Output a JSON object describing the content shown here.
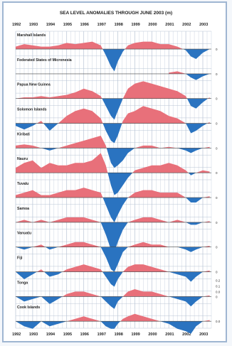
{
  "chart_data": {
    "type": "area",
    "title": "SEA LEVEL ANOMALIES THROUGH JUNE 2003 (m)",
    "xlabel": "",
    "ylabel": "",
    "x_ticks": [
      "1992",
      "1993",
      "1994",
      "1995",
      "1996",
      "1997",
      "1998",
      "1999",
      "2000",
      "2001",
      "2002",
      "2003"
    ],
    "xlim": [
      1992.0,
      2003.5
    ],
    "ylim": [
      -0.2,
      0.2
    ],
    "grid": true,
    "colors": {
      "positive": "#e8707a",
      "negative": "#2a73c0",
      "grid": "#b8c4d4",
      "frame": "#9fb6d2"
    },
    "scale_labels_tonga": [
      "0.2",
      "0.1",
      "0.0"
    ],
    "series": [
      {
        "name": "Marshall Islands",
        "axis_label": "0",
        "x": [
          1992.0,
          1992.5,
          1993.0,
          1993.5,
          1994.0,
          1994.5,
          1995.0,
          1995.5,
          1996.0,
          1996.5,
          1997.0,
          1997.3,
          1997.6,
          1997.8,
          1998.0,
          1998.3,
          1998.6,
          1999.0,
          1999.5,
          2000.0,
          2000.5,
          2001.0,
          2001.5,
          2002.0,
          2002.3,
          2002.6,
          2003.0,
          2003.4
        ],
        "values": [
          0.02,
          0.04,
          0.03,
          0.02,
          0.02,
          0.03,
          0.05,
          0.04,
          0.05,
          0.06,
          0.03,
          -0.05,
          -0.14,
          -0.18,
          -0.1,
          -0.02,
          0.03,
          0.05,
          0.06,
          0.06,
          0.04,
          0.04,
          0.02,
          -0.01,
          -0.06,
          -0.08,
          -0.03,
          0.0
        ]
      },
      {
        "name": "Federated States of Micronesia",
        "axis_label": "0",
        "x": [
          2001.0,
          2001.5,
          2002.0,
          2002.3,
          2002.6,
          2003.0,
          2003.4
        ],
        "values": [
          0.01,
          0.02,
          0.0,
          -0.03,
          -0.05,
          -0.02,
          0.0
        ]
      },
      {
        "name": "Papua New Guinea",
        "axis_label": "0",
        "x": [
          1992.0,
          1992.5,
          1993.0,
          1993.5,
          1994.0,
          1994.5,
          1995.0,
          1995.5,
          1996.0,
          1996.5,
          1997.0,
          1997.3,
          1997.6,
          1997.8,
          1998.0,
          1998.3,
          1998.6,
          1999.0,
          1999.5,
          2000.0,
          2000.5,
          2001.0,
          2001.5,
          2002.0,
          2002.3,
          2002.6,
          2003.0,
          2003.4
        ],
        "values": [
          0.0,
          0.01,
          0.01,
          0.02,
          0.01,
          0.02,
          0.03,
          0.05,
          0.08,
          0.06,
          0.02,
          -0.06,
          -0.14,
          -0.17,
          -0.1,
          0.0,
          0.08,
          0.12,
          0.14,
          0.12,
          0.1,
          0.08,
          0.06,
          0.02,
          -0.06,
          -0.08,
          -0.03,
          0.01
        ]
      },
      {
        "name": "Solomon Islands",
        "axis_label": "0",
        "x": [
          1992.0,
          1992.5,
          1993.0,
          1993.5,
          1994.0,
          1994.5,
          1995.0,
          1995.5,
          1996.0,
          1996.5,
          1997.0,
          1997.3,
          1997.6,
          1997.8,
          1998.0,
          1998.3,
          1998.6,
          1999.0,
          1999.5,
          2000.0,
          2000.5,
          2001.0,
          2001.5,
          2002.0,
          2002.3,
          2002.6,
          2003.0,
          2003.4
        ],
        "values": [
          -0.02,
          -0.05,
          -0.02,
          0.02,
          -0.06,
          0.0,
          0.06,
          0.1,
          0.12,
          0.1,
          0.04,
          -0.06,
          -0.14,
          -0.16,
          -0.1,
          0.02,
          0.08,
          0.1,
          0.14,
          0.12,
          0.1,
          0.06,
          0.04,
          0.0,
          -0.08,
          -0.06,
          -0.02,
          0.01
        ]
      },
      {
        "name": "Kiribati",
        "axis_label": "0",
        "x": [
          1992.0,
          1992.5,
          1993.0,
          1993.5,
          1994.0,
          1994.5,
          1995.0,
          1995.5,
          1996.0,
          1996.5,
          1997.0,
          1997.3,
          1997.6,
          1997.8,
          1998.0,
          1998.3,
          1998.6,
          1999.0,
          1999.5,
          2000.0,
          2000.5,
          2001.0,
          2001.5,
          2002.0,
          2002.3,
          2002.6,
          2003.0,
          2003.4
        ],
        "values": [
          0.02,
          0.03,
          0.02,
          0.0,
          -0.02,
          0.0,
          0.02,
          0.04,
          0.06,
          0.08,
          0.1,
          0.02,
          -0.12,
          -0.16,
          -0.14,
          -0.1,
          -0.04,
          0.0,
          0.02,
          0.02,
          0.0,
          0.01,
          0.0,
          -0.02,
          -0.04,
          -0.02,
          0.0,
          0.01
        ]
      },
      {
        "name": "Nauru",
        "axis_label": "0",
        "x": [
          1992.0,
          1992.5,
          1993.0,
          1993.5,
          1994.0,
          1994.5,
          1995.0,
          1995.5,
          1996.0,
          1996.5,
          1997.0,
          1997.3,
          1997.6,
          1997.8,
          1998.0,
          1998.3,
          1998.6,
          1999.0,
          1999.5,
          2000.0,
          2000.5,
          2001.0,
          2001.5,
          2002.0,
          2002.3,
          2002.6,
          2003.0,
          2003.4
        ],
        "values": [
          0.04,
          0.08,
          0.1,
          0.04,
          0.08,
          0.06,
          0.06,
          0.08,
          0.08,
          0.1,
          0.16,
          0.06,
          -0.1,
          -0.18,
          -0.16,
          -0.1,
          -0.04,
          0.02,
          0.04,
          0.06,
          0.06,
          0.08,
          0.06,
          0.02,
          -0.02,
          0.0,
          0.02,
          0.01
        ]
      },
      {
        "name": "Tuvalu",
        "axis_label": "0",
        "x": [
          1992.0,
          1992.5,
          1993.0,
          1993.5,
          1994.0,
          1994.5,
          1995.0,
          1995.5,
          1996.0,
          1996.5,
          1997.0,
          1997.3,
          1997.6,
          1997.8,
          1998.0,
          1998.3,
          1998.6,
          1999.0,
          1999.5,
          2000.0,
          2000.5,
          2001.0,
          2001.5,
          2002.0,
          2002.3,
          2002.6,
          2003.0,
          2003.4
        ],
        "values": [
          0.02,
          0.04,
          0.06,
          0.02,
          0.02,
          0.04,
          0.06,
          0.06,
          0.08,
          0.06,
          0.04,
          -0.06,
          -0.16,
          -0.2,
          -0.14,
          -0.06,
          0.0,
          0.04,
          0.06,
          0.06,
          0.04,
          0.04,
          0.04,
          0.0,
          -0.04,
          -0.04,
          0.0,
          0.01
        ]
      },
      {
        "name": "Samoa",
        "axis_label": "0",
        "x": [
          1992.0,
          1992.5,
          1993.0,
          1993.5,
          1994.0,
          1994.5,
          1995.0,
          1995.5,
          1996.0,
          1996.5,
          1997.0,
          1997.3,
          1997.6,
          1997.8,
          1998.0,
          1998.3,
          1998.6,
          1999.0,
          1999.5,
          2000.0,
          2000.5,
          2001.0,
          2001.5,
          2002.0,
          2002.3,
          2002.6,
          2003.0,
          2003.4
        ],
        "values": [
          0.0,
          0.02,
          0.0,
          0.02,
          0.0,
          0.02,
          0.04,
          0.04,
          0.04,
          0.02,
          0.0,
          -0.1,
          -0.22,
          -0.24,
          -0.16,
          -0.06,
          0.0,
          0.02,
          0.04,
          0.04,
          0.02,
          0.0,
          0.02,
          0.0,
          -0.02,
          -0.02,
          0.0,
          0.01
        ]
      },
      {
        "name": "Vanuatu",
        "axis_label": "0",
        "x": [
          1992.0,
          1992.5,
          1993.0,
          1993.5,
          1994.0,
          1994.5,
          1995.0,
          1995.5,
          1996.0,
          1996.5,
          1997.0,
          1997.3,
          1997.6,
          1997.8,
          1998.0,
          1998.3,
          1998.6,
          1999.0,
          1999.5,
          2000.0,
          2000.5,
          2001.0,
          2001.5,
          2002.0,
          2002.3,
          2002.6,
          2003.0,
          2003.4
        ],
        "values": [
          0.0,
          -0.02,
          0.0,
          0.02,
          -0.02,
          0.0,
          0.02,
          0.04,
          0.04,
          0.02,
          0.0,
          -0.08,
          -0.18,
          -0.2,
          -0.14,
          -0.04,
          0.0,
          0.02,
          0.04,
          0.02,
          0.02,
          0.0,
          0.0,
          -0.02,
          -0.04,
          -0.02,
          0.0,
          0.01
        ]
      },
      {
        "name": "Fiji",
        "axis_label": "0",
        "x": [
          1992.0,
          1992.5,
          1993.0,
          1993.5,
          1994.0,
          1994.5,
          1995.0,
          1995.5,
          1996.0,
          1996.5,
          1997.0,
          1997.3,
          1997.6,
          1997.8,
          1998.0,
          1998.3,
          1998.6,
          1999.0,
          1999.5,
          2000.0,
          2000.5,
          2001.0,
          2001.5,
          2002.0,
          2002.3,
          2002.6,
          2003.0,
          2003.4
        ],
        "values": [
          0.0,
          -0.06,
          -0.02,
          0.02,
          -0.04,
          -0.02,
          0.02,
          0.04,
          0.06,
          0.04,
          0.02,
          -0.04,
          -0.1,
          -0.12,
          -0.06,
          0.0,
          0.04,
          0.06,
          0.06,
          0.04,
          0.02,
          0.0,
          -0.02,
          -0.04,
          -0.08,
          -0.04,
          0.0,
          0.01
        ]
      },
      {
        "name": "Tonga",
        "axis_label": "0",
        "x": [
          1992.0,
          1992.5,
          1993.0,
          1993.5,
          1994.0,
          1994.5,
          1995.0,
          1995.5,
          1996.0,
          1996.5,
          1997.0,
          1997.3,
          1997.6,
          1997.8,
          1998.0,
          1998.3,
          1998.6,
          1999.0,
          1999.5,
          2000.0,
          2000.5,
          2001.0,
          2001.5,
          2002.0,
          2002.3,
          2002.6,
          2003.0,
          2003.4
        ],
        "values": [
          0.0,
          -0.04,
          -0.02,
          0.0,
          -0.06,
          -0.02,
          0.02,
          0.04,
          0.04,
          0.02,
          0.0,
          -0.04,
          -0.08,
          -0.1,
          -0.04,
          0.0,
          0.04,
          0.06,
          0.04,
          0.04,
          0.02,
          0.0,
          -0.02,
          -0.04,
          -0.08,
          -0.04,
          0.0,
          0.01
        ]
      },
      {
        "name": "Cook Islands",
        "axis_label": "0.0",
        "x": [
          1992.0,
          1992.5,
          1993.0,
          1993.5,
          1994.0,
          1994.5,
          1995.0,
          1995.5,
          1996.0,
          1996.5,
          1997.0,
          1997.3,
          1997.6,
          1997.8,
          1998.0,
          1998.3,
          1998.6,
          1999.0,
          1999.5,
          2000.0,
          2000.5,
          2001.0,
          2001.5,
          2002.0,
          2002.3,
          2002.6,
          2003.0,
          2003.4
        ],
        "values": [
          0.0,
          -0.04,
          -0.06,
          0.0,
          -0.04,
          -0.02,
          0.0,
          0.02,
          0.04,
          0.02,
          0.0,
          -0.04,
          -0.06,
          -0.06,
          -0.02,
          0.02,
          0.04,
          0.06,
          0.04,
          0.02,
          0.0,
          -0.02,
          -0.06,
          -0.08,
          -0.1,
          -0.04,
          0.0,
          0.01
        ]
      }
    ]
  }
}
